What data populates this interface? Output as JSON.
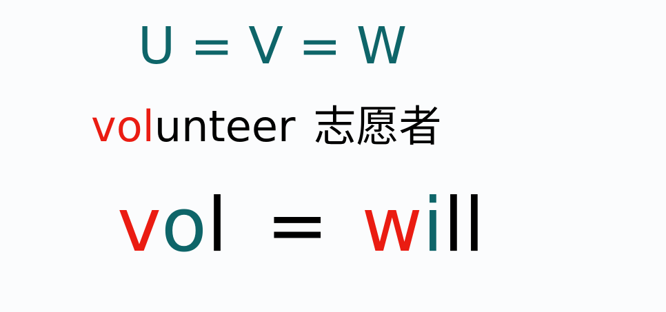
{
  "row1": {
    "u": "U",
    "eq1": "=",
    "v": "V",
    "eq2": "=",
    "w": "W"
  },
  "row2": {
    "word_prefix": "vol",
    "word_rest": "unteer",
    "chinese": "志愿者"
  },
  "row3": {
    "v": "v",
    "o": "o",
    "l": "l",
    "eq": "=",
    "w": "w",
    "i": "i",
    "ll": "ll"
  },
  "colors": {
    "teal": "#0e6569",
    "red": "#ea1c12",
    "black": "#000000",
    "background": "#fbfcfd"
  }
}
